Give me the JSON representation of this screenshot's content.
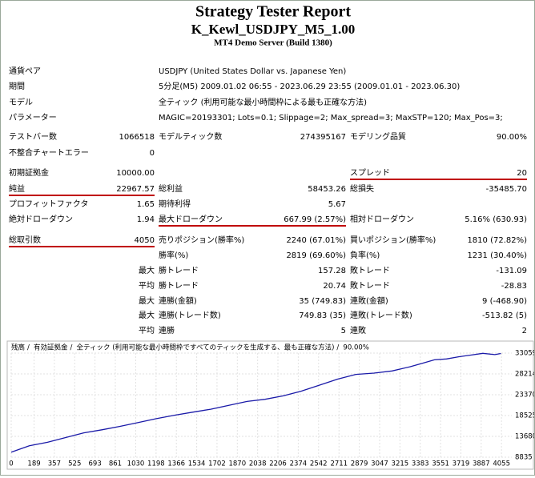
{
  "header": {
    "title": "Strategy Tester Report",
    "subtitle": "K_Kewl_USDJPY_M5_1.00",
    "server": "MT4 Demo Server (Build 1380)"
  },
  "info": [
    [
      "通貨ペア",
      "USDJPY (United States Dollar vs. Japanese Yen)"
    ],
    [
      "期間",
      "5分足(M5) 2009.01.02 06:55 - 2023.06.29 23:55 (2009.01.01 - 2023.06.30)"
    ],
    [
      "モデル",
      "全ティック (利用可能な最小時間枠による最も正確な方法)"
    ],
    [
      "パラメーター",
      "MAGIC=20193301; Lots=0.1; Slippage=2; Max_spread=3; MaxSTP=120; Max_Pos=3;"
    ]
  ],
  "stats": [
    [
      "テストバー数",
      "1066518",
      "モデルティック数",
      "274395167",
      "モデリング品質",
      "90.00%"
    ],
    [
      "不整合チャートエラー",
      "0",
      null,
      null,
      null,
      null
    ],
    [
      "初期証拠金",
      "10000.00",
      null,
      null,
      "スプレッド",
      "20"
    ],
    [
      "純益",
      "22967.57",
      "総利益",
      "58453.26",
      "総損失",
      "-35485.70"
    ],
    [
      "プロフィットファクタ",
      "1.65",
      "期待利得",
      "5.67",
      null,
      null
    ],
    [
      "絶対ドローダウン",
      "1.94",
      "最大ドローダウン",
      "667.99 (2.57%)",
      "相対ドローダウン",
      "5.16% (630.93)"
    ],
    [
      "総取引数",
      "4050",
      "売りポジション(勝率%)",
      "2240 (67.01%)",
      "買いポジション(勝率%)",
      "1810 (72.82%)"
    ],
    [
      null,
      null,
      "勝率(%)",
      "2819 (69.60%)",
      "負率(%)",
      "1231 (30.40%)"
    ],
    [
      null,
      "最大",
      "勝トレード",
      "157.28",
      "敗トレード",
      "-131.09"
    ],
    [
      null,
      "平均",
      "勝トレード",
      "20.74",
      "敗トレード",
      "-28.83"
    ],
    [
      null,
      "最大",
      "連勝(金額)",
      "35 (749.83)",
      "連敗(金額)",
      "9 (-468.90)"
    ],
    [
      null,
      "最大",
      "連勝(トレード数)",
      "749.83 (35)",
      "連敗(トレード数)",
      "-513.82 (5)"
    ],
    [
      null,
      "平均",
      "連勝",
      "5",
      "連敗",
      "2"
    ]
  ],
  "chart": {
    "type": "line",
    "model": "全ティック (利用可能な最小時間枠ですべてのティックを生成する、最も正確な方法)",
    "quality": "90.00%",
    "xlim": [
      0,
      4140
    ],
    "ylim": [
      8835,
      33059
    ],
    "xticks": [
      0,
      189,
      357,
      525,
      693,
      861,
      1030,
      1198,
      1366,
      1534,
      1702,
      1870,
      2038,
      2206,
      2374,
      2542,
      2711,
      2879,
      3047,
      3215,
      3383,
      3551,
      3719,
      3887,
      4055
    ],
    "yticks": [
      33059,
      28214,
      23370,
      18525,
      13680,
      8835
    ],
    "grid": true,
    "x": [
      0,
      150,
      300,
      450,
      600,
      750,
      900,
      1050,
      1200,
      1350,
      1500,
      1650,
      1800,
      1950,
      2100,
      2250,
      2400,
      2550,
      2700,
      2850,
      3000,
      3150,
      3300,
      3400,
      3500,
      3600,
      3700,
      3800,
      3900,
      4000,
      4050
    ],
    "series": [
      {
        "name": "残高",
        "color": "#1a1aa8",
        "values": [
          10000,
          11500,
          12300,
          13400,
          14500,
          15200,
          16000,
          16900,
          17800,
          18600,
          19300,
          20000,
          20900,
          21800,
          22300,
          23100,
          24200,
          25600,
          27000,
          28100,
          28400,
          28900,
          29900,
          30700,
          31500,
          31700,
          32200,
          32600,
          33000,
          32700,
          32967.57
        ]
      },
      {
        "name": "有効証拠金",
        "color": "#1fa01f"
      }
    ]
  }
}
